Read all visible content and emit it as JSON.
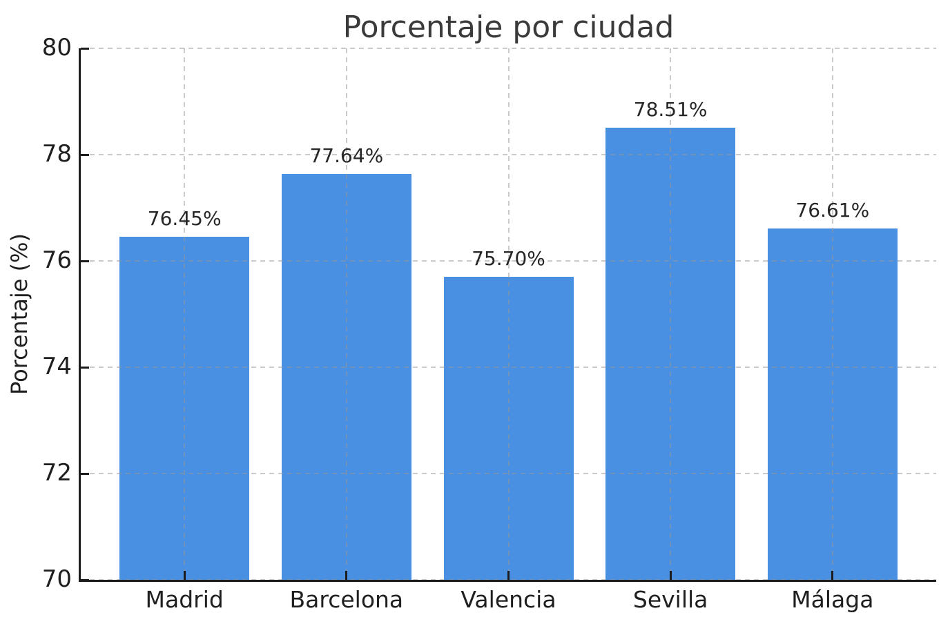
{
  "chart_data": {
    "type": "bar",
    "title": "Porcentaje por ciudad",
    "xlabel": "",
    "ylabel": "Porcentaje (%)",
    "categories": [
      "Madrid",
      "Barcelona",
      "Valencia",
      "Sevilla",
      "Málaga"
    ],
    "values": [
      76.45,
      77.64,
      75.7,
      78.51,
      76.61
    ],
    "value_labels": [
      "76.45%",
      "77.64%",
      "75.70%",
      "78.51%",
      "76.61%"
    ],
    "ylim": [
      70,
      80
    ],
    "yticks": [
      70,
      72,
      74,
      76,
      78,
      80
    ],
    "grid": "dashed, drawn over bars",
    "legend": "none",
    "colors": {
      "bar": "#4a90e2",
      "grid": "rgba(150,150,150,0.5)",
      "axis": "#1c1c1c",
      "tick_label": "#1f1f1f",
      "value_label": "#262626",
      "title": "#3a3a3a",
      "background": "#ffffff"
    }
  }
}
